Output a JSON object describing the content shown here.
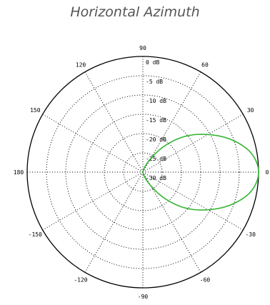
{
  "title": "Horizontal Azimuth",
  "colors": {
    "pattern": "#33b533",
    "grid": "#000000",
    "title": "#555555"
  },
  "chart_data": {
    "type": "polar",
    "title": "Horizontal Azimuth",
    "angular_axis": {
      "unit": "degrees",
      "tick_values": [
        0,
        30,
        60,
        90,
        120,
        150,
        180,
        -150,
        -120,
        -90,
        -60,
        -30
      ],
      "tick_labels": [
        "0",
        "30",
        "60",
        "90",
        "120",
        "150",
        "180",
        "-150",
        "-120",
        "-90",
        "-60",
        "-30"
      ]
    },
    "radial_axis": {
      "unit": "dB",
      "range": [
        -30,
        0
      ],
      "tick_values": [
        0,
        -5,
        -10,
        -15,
        -20,
        -25,
        -30
      ],
      "tick_labels": [
        "0 dB",
        "-5 dB",
        "-10 dB",
        "-15 dB",
        "-20 dB",
        "-25 dB",
        "-30 dB"
      ]
    },
    "grid": true,
    "series": [
      {
        "angles_deg": [
          -90,
          -75,
          -60,
          -50,
          -40,
          -30,
          -20,
          -10,
          0,
          10,
          20,
          30,
          40,
          50,
          60,
          75,
          90
        ],
        "gain_db": [
          -30,
          -29.5,
          -26,
          -21,
          -15.5,
          -10.5,
          -5.5,
          -1.5,
          0,
          -1.5,
          -5.5,
          -10.5,
          -15.5,
          -21,
          -26,
          -29.5,
          -30
        ]
      }
    ]
  }
}
